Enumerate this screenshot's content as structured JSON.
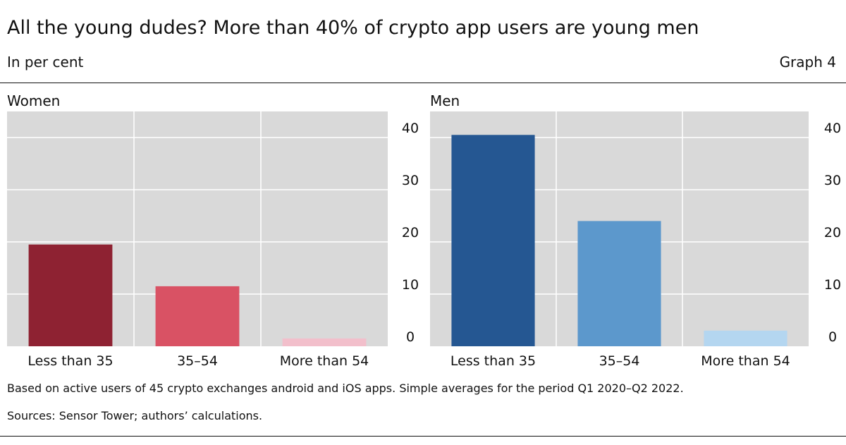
{
  "header": {
    "title": "All the young dudes? More than 40% of crypto app users are young men",
    "subtitle": "In per cent",
    "graph_number": "Graph 4"
  },
  "footer": {
    "note": "Based on active users of 45 crypto exchanges android and iOS apps. Simple averages for the period Q1 2020–Q2 2022.",
    "sources": "Sources: Sensor Tower; authors’ calculations."
  },
  "chart_data": [
    {
      "type": "bar",
      "title": "Women",
      "categories": [
        "Less than 35",
        "35–54",
        "More than 54"
      ],
      "values": [
        19.5,
        11.5,
        1.5
      ],
      "colors": [
        "#8e2232",
        "#d95264",
        "#f2bfcb"
      ],
      "ylim": [
        0,
        45
      ],
      "yticks": [
        0,
        10,
        20,
        30,
        40
      ],
      "grid": true,
      "xlabel": "",
      "ylabel": ""
    },
    {
      "type": "bar",
      "title": "Men",
      "categories": [
        "Less than 35",
        "35–54",
        "More than 54"
      ],
      "values": [
        40.5,
        24,
        3
      ],
      "colors": [
        "#255792",
        "#5c98cc",
        "#b4d6f0"
      ],
      "ylim": [
        0,
        45
      ],
      "yticks": [
        0,
        10,
        20,
        30,
        40
      ],
      "grid": true,
      "xlabel": "",
      "ylabel": ""
    }
  ]
}
